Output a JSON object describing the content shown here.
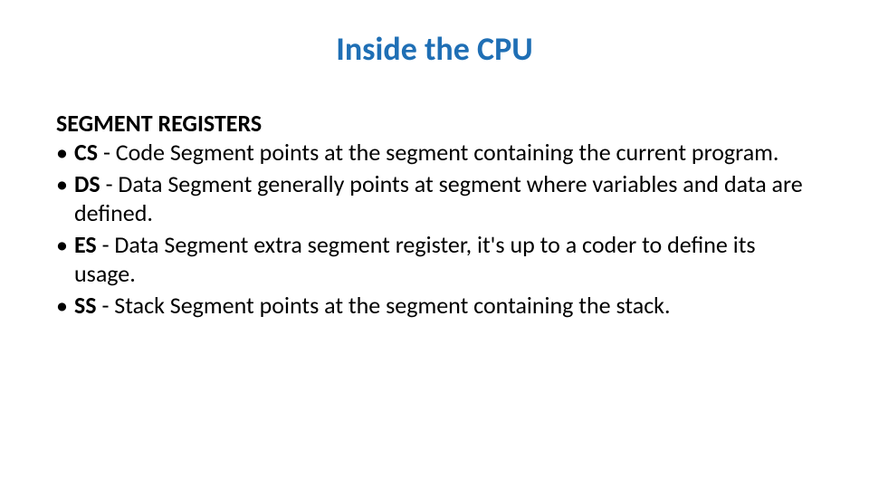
{
  "slide": {
    "title": "Inside the CPU",
    "title_color": "#1f6fb5",
    "title_fontsize": 36,
    "subheading": "SEGMENT REGISTERS",
    "subheading_fontsize": 26,
    "body_fontsize": 26,
    "body_color": "#000000",
    "background_color": "#ffffff",
    "bullets": [
      {
        "label": "CS",
        "text": " - Code Segment points at the segment containing the current program."
      },
      {
        "label": "DS",
        "text": " - Data Segment generally points at segment where variables and data are defined."
      },
      {
        "label": "ES",
        "text": " - Data Segment extra segment register, it's up to a coder to define its usage."
      },
      {
        "label": "SS",
        "text": " - Stack Segment points at the segment containing the stack."
      }
    ]
  }
}
